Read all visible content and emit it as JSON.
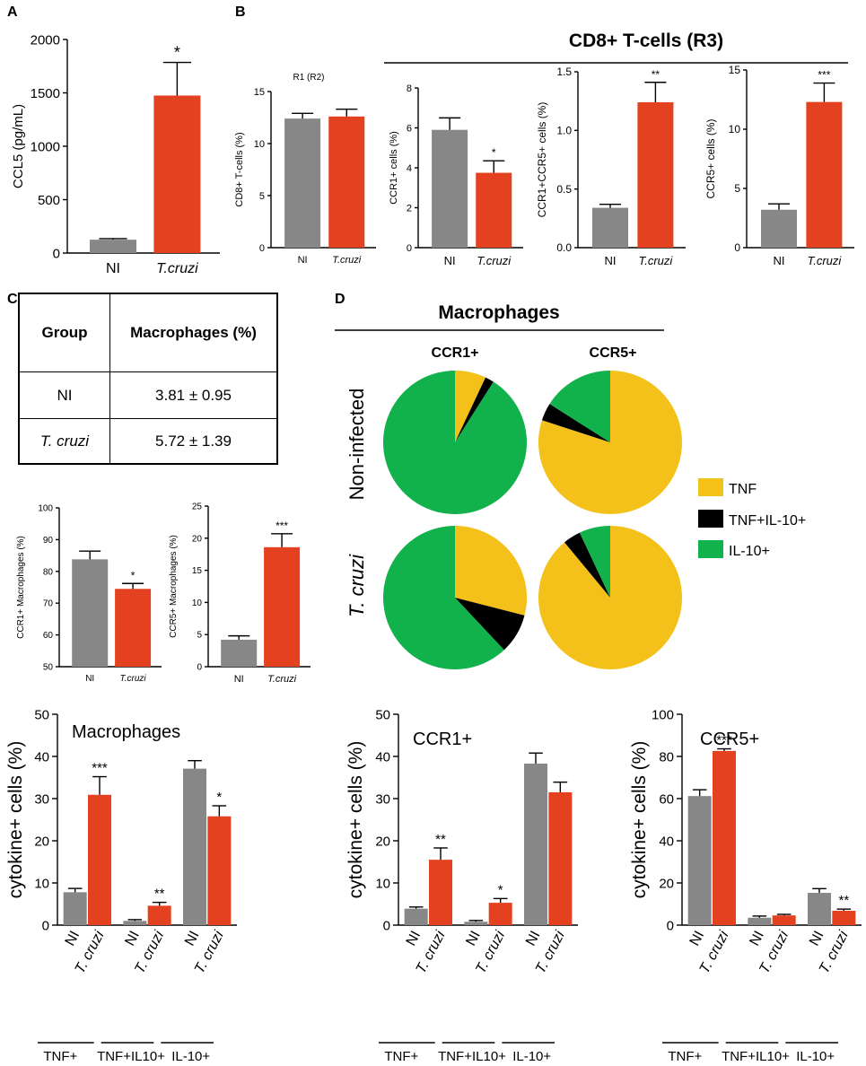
{
  "colors": {
    "ni": "#878787",
    "tcruzi": "#e3411f",
    "tnf": "#f4c11b",
    "tnf_il10": "#000000",
    "il10": "#11b14b"
  },
  "panels": {
    "a": "A",
    "b": "B",
    "c": "C",
    "d": "D"
  },
  "panel_b": {
    "group_title": "CD8+ T-cells (R3)",
    "sub_title": "R1 (R2)"
  },
  "table": {
    "header_group": "Group",
    "header_value": "Macrophages (%)",
    "rows": [
      {
        "group": "NI",
        "value": "3.81 ± 0.95"
      },
      {
        "group": "T. cruzi",
        "value": "5.72 ± 1.39"
      }
    ]
  },
  "pies_meta": {
    "title": "Macrophages",
    "col_labels": [
      "CCR1+",
      "CCR5+"
    ],
    "row_labels": [
      "Non-infected",
      "T. cruzi"
    ],
    "legend": [
      "TNF",
      "TNF+IL-10+",
      "IL-10+"
    ]
  },
  "chart_data": [
    {
      "id": "A",
      "type": "bar",
      "categories": [
        "NI",
        "T.cruzi"
      ],
      "values": [
        125,
        1475
      ],
      "errors": [
        10,
        310
      ],
      "ylabel": "CCL5 (pg/mL)",
      "ylim": [
        0,
        2000
      ],
      "yticks": [
        0,
        500,
        1000,
        1500,
        2000
      ],
      "sig": [
        "",
        "*"
      ]
    },
    {
      "id": "B1",
      "type": "bar",
      "categories": [
        "NI",
        "T.cruzi"
      ],
      "values": [
        12.4,
        12.6
      ],
      "errors": [
        0.5,
        0.7
      ],
      "ylabel": "CD8+ T-cells (%)",
      "ylim": [
        0,
        15
      ],
      "yticks": [
        0,
        5,
        10,
        15
      ],
      "sig": [
        "",
        ""
      ]
    },
    {
      "id": "B2",
      "type": "bar",
      "categories": [
        "NI",
        "T.cruzi"
      ],
      "values": [
        5.9,
        3.75
      ],
      "errors": [
        0.6,
        0.6
      ],
      "ylabel": "CCR1+ cells (%)",
      "ylim": [
        0,
        8
      ],
      "yticks": [
        0,
        2,
        4,
        6,
        8
      ],
      "sig": [
        "",
        "*"
      ]
    },
    {
      "id": "B3",
      "type": "bar",
      "categories": [
        "NI",
        "T.cruzi"
      ],
      "values": [
        0.34,
        1.24
      ],
      "errors": [
        0.03,
        0.17
      ],
      "ylabel": "CCR1+CCR5+ cells (%)",
      "ylim": [
        0,
        1.5
      ],
      "yticks": [
        0,
        0.5,
        1.0,
        1.5
      ],
      "sig": [
        "",
        "**"
      ]
    },
    {
      "id": "B4",
      "type": "bar",
      "categories": [
        "NI",
        "T.cruzi"
      ],
      "values": [
        3.2,
        12.3
      ],
      "errors": [
        0.5,
        1.6
      ],
      "ylabel": "CCR5+ cells (%)",
      "ylim": [
        0,
        15
      ],
      "yticks": [
        0,
        5,
        10,
        15
      ],
      "sig": [
        "",
        "***"
      ]
    },
    {
      "id": "C1",
      "type": "bar",
      "categories": [
        "NI",
        "T.cruzi"
      ],
      "values": [
        83.8,
        74.5
      ],
      "errors": [
        2.6,
        1.7
      ],
      "ylabel": "CCR1+ Macrophages (%)",
      "ylim": [
        50,
        100
      ],
      "yticks": [
        50,
        60,
        70,
        80,
        90,
        100
      ],
      "sig": [
        "",
        "*"
      ]
    },
    {
      "id": "C2",
      "type": "bar",
      "categories": [
        "NI",
        "T.cruzi"
      ],
      "values": [
        4.2,
        18.6
      ],
      "errors": [
        0.6,
        2.1
      ],
      "ylabel": "CCR5+ Macrophages (%)",
      "ylim": [
        0,
        25
      ],
      "yticks": [
        0,
        5,
        10,
        15,
        20,
        25
      ],
      "sig": [
        "",
        "***"
      ]
    },
    {
      "id": "D-pie-NI-CCR1",
      "type": "pie",
      "labels": [
        "TNF",
        "TNF+IL-10+",
        "IL-10+"
      ],
      "values": [
        7,
        2,
        91
      ]
    },
    {
      "id": "D-pie-NI-CCR5",
      "type": "pie",
      "labels": [
        "TNF",
        "TNF+IL-10+",
        "IL-10+"
      ],
      "values": [
        80,
        4,
        16
      ]
    },
    {
      "id": "D-pie-TC-CCR1",
      "type": "pie",
      "labels": [
        "TNF",
        "TNF+IL-10+",
        "IL-10+"
      ],
      "values": [
        29,
        9,
        62
      ]
    },
    {
      "id": "D-pie-TC-CCR5",
      "type": "pie",
      "labels": [
        "TNF",
        "TNF+IL-10+",
        "IL-10+"
      ],
      "values": [
        89,
        4,
        7
      ]
    },
    {
      "id": "E1",
      "type": "bar",
      "title": "Macrophages",
      "groups": [
        "TNF+",
        "TNF+IL10+",
        "IL-10+"
      ],
      "categories": [
        "NI",
        "T. cruzi",
        "NI",
        "T. cruzi",
        "NI",
        "T. cruzi"
      ],
      "values": [
        7.8,
        30.9,
        1.0,
        4.6,
        37.1,
        25.8
      ],
      "errors": [
        0.9,
        4.3,
        0.3,
        0.8,
        1.9,
        2.5
      ],
      "ylabel": "cytokine+ cells (%)",
      "ylim": [
        0,
        50
      ],
      "yticks": [
        0,
        10,
        20,
        30,
        40,
        50
      ],
      "sig": [
        "",
        "***",
        "",
        "**",
        "",
        "*"
      ]
    },
    {
      "id": "E2",
      "type": "bar",
      "title": "CCR1+",
      "groups": [
        "TNF+",
        "TNF+IL10+",
        "IL-10+"
      ],
      "categories": [
        "NI",
        "T. cruzi",
        "NI",
        "T. cruzi",
        "NI",
        "T. cruzi"
      ],
      "values": [
        3.9,
        15.5,
        0.8,
        5.3,
        38.3,
        31.5
      ],
      "errors": [
        0.4,
        2.8,
        0.3,
        1.0,
        2.5,
        2.4
      ],
      "ylabel": "cytokine+ cells (%)",
      "ylim": [
        0,
        50
      ],
      "yticks": [
        0,
        10,
        20,
        30,
        40,
        50
      ],
      "sig": [
        "",
        "**",
        "",
        "*",
        "",
        ""
      ]
    },
    {
      "id": "E3",
      "type": "bar",
      "title": "CCR5+",
      "groups": [
        "TNF+",
        "TNF+IL10+",
        "IL-10+"
      ],
      "categories": [
        "NI",
        "T. cruzi",
        "NI",
        "T. cruzi",
        "NI",
        "T. cruzi"
      ],
      "values": [
        61.2,
        82.6,
        3.5,
        4.6,
        15.3,
        6.8
      ],
      "errors": [
        3.0,
        1.0,
        0.8,
        0.5,
        2.0,
        0.8
      ],
      "ylabel": "cytokine+ cells (%)",
      "ylim": [
        0,
        100
      ],
      "yticks": [
        0,
        20,
        40,
        60,
        80,
        100
      ],
      "sig": [
        "",
        "***",
        "",
        "",
        "",
        "**"
      ]
    }
  ]
}
